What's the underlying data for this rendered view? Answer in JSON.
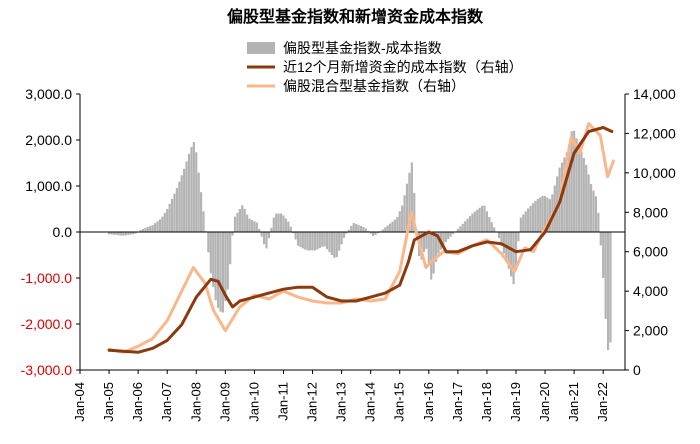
{
  "chart_data": {
    "type": "bar+line",
    "title": "偏股型基金指数和新增资金成本指数",
    "legend_position": "top-center",
    "left_axis": {
      "ylim": [
        -3000,
        3000
      ],
      "ticks": [
        "3,000.0",
        "2,000.0",
        "1,000.0",
        "0.0",
        "-1,000.0",
        "-2,000.0",
        "-3,000.0"
      ],
      "tick_values": [
        3000,
        2000,
        1000,
        0,
        -1000,
        -2000,
        -3000
      ],
      "positive_color": "#000000",
      "negative_color": "#e00000"
    },
    "right_axis": {
      "ylim": [
        0,
        14000
      ],
      "ticks": [
        "14,000",
        "12,000",
        "10,000",
        "8,000",
        "6,000",
        "4,000",
        "2,000",
        "0"
      ],
      "tick_values": [
        14000,
        12000,
        10000,
        8000,
        6000,
        4000,
        2000,
        0
      ]
    },
    "x_axis": {
      "range": [
        2004.0,
        2022.75
      ],
      "ticks": [
        "Jan-04",
        "Jan-05",
        "Jan-06",
        "Jan-07",
        "Jan-08",
        "Jan-09",
        "Jan-10",
        "Jan-11",
        "Jan-12",
        "Jan-13",
        "Jan-14",
        "Jan-15",
        "Jan-16",
        "Jan-17",
        "Jan-18",
        "Jan-19",
        "Jan-20",
        "Jan-21",
        "Jan-22"
      ]
    },
    "series": [
      {
        "name": "偏股型基金指数-成本指数",
        "type": "bar",
        "axis": "left",
        "color": "#b3b3b3",
        "points": [
          [
            2005.0,
            -50
          ],
          [
            2005.5,
            -80
          ],
          [
            2005.9,
            -40
          ],
          [
            2006.1,
            50
          ],
          [
            2006.5,
            150
          ],
          [
            2006.8,
            300
          ],
          [
            2007.0,
            500
          ],
          [
            2007.3,
            900
          ],
          [
            2007.6,
            1400
          ],
          [
            2007.8,
            1800
          ],
          [
            2007.95,
            2000
          ],
          [
            2008.1,
            1200
          ],
          [
            2008.3,
            200
          ],
          [
            2008.5,
            -900
          ],
          [
            2008.7,
            -1600
          ],
          [
            2008.9,
            -1800
          ],
          [
            2009.1,
            -1200
          ],
          [
            2009.3,
            300
          ],
          [
            2009.6,
            600
          ],
          [
            2009.8,
            300
          ],
          [
            2010.1,
            200
          ],
          [
            2010.4,
            -400
          ],
          [
            2010.7,
            400
          ],
          [
            2010.95,
            400
          ],
          [
            2011.2,
            200
          ],
          [
            2011.5,
            -300
          ],
          [
            2011.8,
            -400
          ],
          [
            2012.1,
            -400
          ],
          [
            2012.4,
            -300
          ],
          [
            2012.8,
            -600
          ],
          [
            2013.1,
            -100
          ],
          [
            2013.4,
            200
          ],
          [
            2013.8,
            100
          ],
          [
            2014.1,
            -100
          ],
          [
            2014.5,
            100
          ],
          [
            2014.9,
            300
          ],
          [
            2015.1,
            600
          ],
          [
            2015.3,
            1200
          ],
          [
            2015.45,
            1600
          ],
          [
            2015.55,
            100
          ],
          [
            2015.7,
            -700
          ],
          [
            2015.9,
            -300
          ],
          [
            2016.1,
            -1100
          ],
          [
            2016.3,
            -500
          ],
          [
            2016.6,
            -200
          ],
          [
            2016.9,
            0
          ],
          [
            2017.2,
            200
          ],
          [
            2017.5,
            400
          ],
          [
            2017.9,
            600
          ],
          [
            2018.1,
            300
          ],
          [
            2018.4,
            -100
          ],
          [
            2018.7,
            -700
          ],
          [
            2018.95,
            -1200
          ],
          [
            2019.15,
            300
          ],
          [
            2019.4,
            500
          ],
          [
            2019.7,
            700
          ],
          [
            2019.95,
            800
          ],
          [
            2020.2,
            700
          ],
          [
            2020.5,
            1400
          ],
          [
            2020.8,
            1800
          ],
          [
            2020.95,
            2300
          ],
          [
            2021.15,
            1900
          ],
          [
            2021.4,
            1500
          ],
          [
            2021.6,
            1000
          ],
          [
            2021.8,
            700
          ],
          [
            2022.0,
            -1000
          ],
          [
            2022.15,
            -2600
          ],
          [
            2022.3,
            -2300
          ]
        ]
      },
      {
        "name": "近12个月新增资金的成本指数（右轴）",
        "type": "line",
        "axis": "right",
        "color": "#8b3a0f",
        "points": [
          [
            2005.0,
            1000
          ],
          [
            2005.5,
            950
          ],
          [
            2006.0,
            900
          ],
          [
            2006.5,
            1100
          ],
          [
            2007.0,
            1500
          ],
          [
            2007.5,
            2300
          ],
          [
            2008.0,
            3700
          ],
          [
            2008.5,
            4600
          ],
          [
            2008.75,
            4500
          ],
          [
            2009.0,
            3800
          ],
          [
            2009.25,
            3200
          ],
          [
            2009.5,
            3500
          ],
          [
            2010.0,
            3700
          ],
          [
            2010.5,
            3900
          ],
          [
            2011.0,
            4100
          ],
          [
            2011.5,
            4200
          ],
          [
            2012.0,
            4200
          ],
          [
            2012.5,
            3700
          ],
          [
            2013.0,
            3500
          ],
          [
            2013.5,
            3500
          ],
          [
            2014.0,
            3700
          ],
          [
            2014.5,
            3900
          ],
          [
            2015.0,
            4300
          ],
          [
            2015.3,
            5500
          ],
          [
            2015.5,
            6600
          ],
          [
            2016.0,
            7000
          ],
          [
            2016.3,
            6800
          ],
          [
            2016.6,
            6000
          ],
          [
            2017.0,
            6000
          ],
          [
            2017.5,
            6300
          ],
          [
            2018.0,
            6500
          ],
          [
            2018.5,
            6400
          ],
          [
            2019.0,
            6000
          ],
          [
            2019.5,
            6100
          ],
          [
            2020.0,
            7000
          ],
          [
            2020.5,
            8500
          ],
          [
            2021.0,
            11000
          ],
          [
            2021.5,
            12100
          ],
          [
            2022.0,
            12300
          ],
          [
            2022.3,
            12100
          ]
        ]
      },
      {
        "name": "偏股混合型基金指数（右轴）",
        "type": "line",
        "axis": "right",
        "color": "#f8b88b",
        "points": [
          [
            2005.0,
            1050
          ],
          [
            2005.5,
            900
          ],
          [
            2006.0,
            1200
          ],
          [
            2006.5,
            1600
          ],
          [
            2007.0,
            2500
          ],
          [
            2007.5,
            4000
          ],
          [
            2007.9,
            5200
          ],
          [
            2008.3,
            4400
          ],
          [
            2008.6,
            3000
          ],
          [
            2009.0,
            2000
          ],
          [
            2009.5,
            3200
          ],
          [
            2010.0,
            3800
          ],
          [
            2010.5,
            3600
          ],
          [
            2011.0,
            4000
          ],
          [
            2011.5,
            3700
          ],
          [
            2012.0,
            3500
          ],
          [
            2012.5,
            3400
          ],
          [
            2013.0,
            3400
          ],
          [
            2013.5,
            3600
          ],
          [
            2014.0,
            3500
          ],
          [
            2014.5,
            3600
          ],
          [
            2015.0,
            5000
          ],
          [
            2015.4,
            8000
          ],
          [
            2015.6,
            6800
          ],
          [
            2015.9,
            5200
          ],
          [
            2016.1,
            5500
          ],
          [
            2016.5,
            6000
          ],
          [
            2017.0,
            5900
          ],
          [
            2017.5,
            6300
          ],
          [
            2018.0,
            6600
          ],
          [
            2018.5,
            5900
          ],
          [
            2018.95,
            5000
          ],
          [
            2019.3,
            6200
          ],
          [
            2019.6,
            6000
          ],
          [
            2020.0,
            7200
          ],
          [
            2020.5,
            8500
          ],
          [
            2020.9,
            11800
          ],
          [
            2021.2,
            11000
          ],
          [
            2021.5,
            12500
          ],
          [
            2021.9,
            11900
          ],
          [
            2022.15,
            9800
          ],
          [
            2022.35,
            10600
          ]
        ]
      }
    ]
  }
}
